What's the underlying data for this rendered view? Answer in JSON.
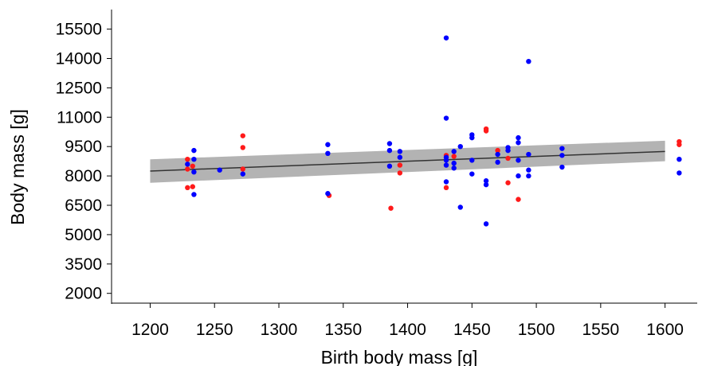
{
  "chart_data": {
    "type": "scatter",
    "title": "",
    "xlabel": "Birth body mass [g]",
    "ylabel": "Body mass [g]",
    "xlim": [
      1170,
      1625
    ],
    "ylim": [
      1500,
      16500
    ],
    "xticks": [
      1200,
      1250,
      1300,
      1350,
      1400,
      1450,
      1500,
      1550,
      1600
    ],
    "yticks": [
      2000,
      3500,
      5000,
      6500,
      8000,
      9500,
      11000,
      12500,
      14000,
      15500
    ],
    "grid": false,
    "legend": "none",
    "colors": {
      "series_red": "#ff1a1a",
      "series_blue": "#0000ff",
      "fit_line": "#333333",
      "ci_band": "#b3b3b3",
      "axis": "#000000"
    },
    "series": [
      {
        "color": "red",
        "points": [
          [
            1229,
            8850
          ],
          [
            1229,
            8350
          ],
          [
            1229,
            7400
          ],
          [
            1233,
            8500
          ],
          [
            1233,
            7450
          ],
          [
            1272,
            10050
          ],
          [
            1272,
            9450
          ],
          [
            1272,
            8350
          ],
          [
            1339,
            7000
          ],
          [
            1387,
            6350
          ],
          [
            1394,
            8550
          ],
          [
            1394,
            8150
          ],
          [
            1430,
            9050
          ],
          [
            1430,
            7400
          ],
          [
            1436,
            9000
          ],
          [
            1461,
            10400
          ],
          [
            1461,
            10300
          ],
          [
            1470,
            9300
          ],
          [
            1478,
            8900
          ],
          [
            1478,
            7650
          ],
          [
            1486,
            6800
          ],
          [
            1611,
            9750
          ],
          [
            1611,
            9600
          ]
        ]
      },
      {
        "color": "blue",
        "points": [
          [
            1229,
            8600
          ],
          [
            1234,
            9300
          ],
          [
            1234,
            8850
          ],
          [
            1234,
            8200
          ],
          [
            1234,
            7050
          ],
          [
            1254,
            8300
          ],
          [
            1272,
            8100
          ],
          [
            1338,
            9600
          ],
          [
            1338,
            9150
          ],
          [
            1338,
            7100
          ],
          [
            1386,
            9650
          ],
          [
            1386,
            9300
          ],
          [
            1386,
            8500
          ],
          [
            1394,
            9250
          ],
          [
            1394,
            8950
          ],
          [
            1430,
            15050
          ],
          [
            1430,
            10950
          ],
          [
            1430,
            8950
          ],
          [
            1430,
            8800
          ],
          [
            1430,
            8550
          ],
          [
            1430,
            7700
          ],
          [
            1436,
            9250
          ],
          [
            1436,
            8650
          ],
          [
            1436,
            8400
          ],
          [
            1441,
            9500
          ],
          [
            1441,
            6400
          ],
          [
            1450,
            10100
          ],
          [
            1450,
            9950
          ],
          [
            1450,
            8800
          ],
          [
            1450,
            8100
          ],
          [
            1461,
            7750
          ],
          [
            1461,
            7550
          ],
          [
            1461,
            5550
          ],
          [
            1470,
            9100
          ],
          [
            1470,
            8700
          ],
          [
            1478,
            9450
          ],
          [
            1478,
            9300
          ],
          [
            1486,
            9950
          ],
          [
            1486,
            9700
          ],
          [
            1486,
            8800
          ],
          [
            1486,
            8000
          ],
          [
            1494,
            13850
          ],
          [
            1494,
            9100
          ],
          [
            1494,
            8300
          ],
          [
            1494,
            8000
          ],
          [
            1520,
            9400
          ],
          [
            1520,
            9050
          ],
          [
            1520,
            8450
          ],
          [
            1611,
            8850
          ],
          [
            1611,
            8150
          ]
        ]
      }
    ],
    "regression": {
      "x": [
        1200,
        1600
      ],
      "y": [
        8250,
        9250
      ],
      "ci_lower": [
        7650,
        8750
      ],
      "ci_upper": [
        8850,
        9800
      ]
    }
  }
}
